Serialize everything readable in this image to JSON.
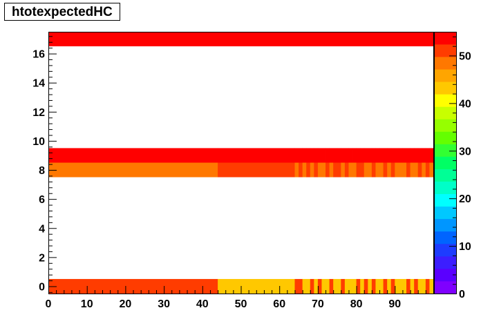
{
  "chart_data": {
    "type": "heatmap",
    "title": "htotexpectedHC",
    "xlabel": "",
    "ylabel": "",
    "xlim": [
      0,
      100
    ],
    "ylim": [
      -0.5,
      17.5
    ],
    "x_ticks": [
      0,
      10,
      20,
      30,
      40,
      50,
      60,
      70,
      80,
      90
    ],
    "y_ticks": [
      0,
      2,
      4,
      6,
      8,
      10,
      12,
      14,
      16
    ],
    "zlim": [
      0,
      55
    ],
    "z_ticks": [
      0,
      10,
      20,
      30,
      40,
      50
    ],
    "grid": false,
    "palette": [
      "#7f00ff",
      "#5a00ff",
      "#3c1eff",
      "#1e3cff",
      "#0064ff",
      "#0096ff",
      "#00c8ff",
      "#00ffff",
      "#00ffc8",
      "#00ff96",
      "#00ff64",
      "#32ff32",
      "#64ff00",
      "#96ff00",
      "#c8ff00",
      "#ffff00",
      "#ffc800",
      "#ffa500",
      "#ff7800",
      "#ff3c00",
      "#ff0000"
    ],
    "rows": [
      {
        "y": 0,
        "segments": [
          {
            "x": [
              0,
              44
            ],
            "z": 51
          },
          {
            "x": [
              44,
              64
            ],
            "z": 43
          },
          {
            "x": [
              64,
              66
            ],
            "z": 51
          },
          {
            "x": [
              66,
              68
            ],
            "z": 43
          },
          {
            "x": [
              68,
              69
            ],
            "z": 51
          },
          {
            "x": [
              69,
              70
            ],
            "z": 43
          },
          {
            "x": [
              70,
              71
            ],
            "z": 51
          },
          {
            "x": [
              71,
              73
            ],
            "z": 43
          },
          {
            "x": [
              73,
              74
            ],
            "z": 51
          },
          {
            "x": [
              74,
              76
            ],
            "z": 43
          },
          {
            "x": [
              76,
              77
            ],
            "z": 51
          },
          {
            "x": [
              77,
              80
            ],
            "z": 43
          },
          {
            "x": [
              80,
              81
            ],
            "z": 51
          },
          {
            "x": [
              81,
              82
            ],
            "z": 43
          },
          {
            "x": [
              82,
              83
            ],
            "z": 51
          },
          {
            "x": [
              83,
              84
            ],
            "z": 43
          },
          {
            "x": [
              84,
              85
            ],
            "z": 51
          },
          {
            "x": [
              85,
              87
            ],
            "z": 43
          },
          {
            "x": [
              87,
              88
            ],
            "z": 51
          },
          {
            "x": [
              88,
              89
            ],
            "z": 43
          },
          {
            "x": [
              89,
              90
            ],
            "z": 51
          },
          {
            "x": [
              90,
              93
            ],
            "z": 43
          },
          {
            "x": [
              93,
              94
            ],
            "z": 51
          },
          {
            "x": [
              94,
              95
            ],
            "z": 43
          },
          {
            "x": [
              95,
              96
            ],
            "z": 51
          },
          {
            "x": [
              96,
              98
            ],
            "z": 43
          },
          {
            "x": [
              98,
              99
            ],
            "z": 51
          },
          {
            "x": [
              99,
              100
            ],
            "z": 43
          }
        ]
      },
      {
        "y": 8,
        "segments": [
          {
            "x": [
              0,
              44
            ],
            "z": 49
          },
          {
            "x": [
              44,
              64
            ],
            "z": 51
          },
          {
            "x": [
              64,
              65
            ],
            "z": 49
          },
          {
            "x": [
              65,
              66
            ],
            "z": 51
          },
          {
            "x": [
              66,
              67
            ],
            "z": 49
          },
          {
            "x": [
              67,
              68
            ],
            "z": 51
          },
          {
            "x": [
              68,
              69
            ],
            "z": 49
          },
          {
            "x": [
              69,
              70
            ],
            "z": 51
          },
          {
            "x": [
              70,
              72
            ],
            "z": 49
          },
          {
            "x": [
              72,
              73
            ],
            "z": 51
          },
          {
            "x": [
              73,
              74
            ],
            "z": 49
          },
          {
            "x": [
              74,
              76
            ],
            "z": 51
          },
          {
            "x": [
              76,
              77
            ],
            "z": 49
          },
          {
            "x": [
              77,
              78
            ],
            "z": 51
          },
          {
            "x": [
              78,
              80
            ],
            "z": 49
          },
          {
            "x": [
              80,
              82
            ],
            "z": 51
          },
          {
            "x": [
              82,
              84
            ],
            "z": 49
          },
          {
            "x": [
              84,
              85
            ],
            "z": 51
          },
          {
            "x": [
              85,
              87
            ],
            "z": 49
          },
          {
            "x": [
              87,
              88
            ],
            "z": 51
          },
          {
            "x": [
              88,
              89
            ],
            "z": 49
          },
          {
            "x": [
              89,
              90
            ],
            "z": 51
          },
          {
            "x": [
              90,
              93
            ],
            "z": 49
          },
          {
            "x": [
              93,
              94
            ],
            "z": 51
          },
          {
            "x": [
              94,
              96
            ],
            "z": 49
          },
          {
            "x": [
              96,
              97
            ],
            "z": 51
          },
          {
            "x": [
              97,
              98
            ],
            "z": 49
          },
          {
            "x": [
              98,
              99
            ],
            "z": 51
          },
          {
            "x": [
              99,
              100
            ],
            "z": 49
          }
        ]
      },
      {
        "y": 9,
        "segments": [
          {
            "x": [
              0,
              44
            ],
            "z": 54
          },
          {
            "x": [
              44,
              64
            ],
            "z": 53
          },
          {
            "x": [
              64,
              66
            ],
            "z": 54
          },
          {
            "x": [
              66,
              67
            ],
            "z": 53
          },
          {
            "x": [
              67,
              68
            ],
            "z": 54
          },
          {
            "x": [
              68,
              69
            ],
            "z": 53
          },
          {
            "x": [
              69,
              70
            ],
            "z": 54
          },
          {
            "x": [
              70,
              72
            ],
            "z": 53
          },
          {
            "x": [
              72,
              73
            ],
            "z": 54
          },
          {
            "x": [
              73,
              75
            ],
            "z": 53
          },
          {
            "x": [
              75,
              76
            ],
            "z": 54
          },
          {
            "x": [
              76,
              78
            ],
            "z": 53
          },
          {
            "x": [
              78,
              79
            ],
            "z": 54
          },
          {
            "x": [
              79,
              80
            ],
            "z": 53
          },
          {
            "x": [
              80,
              81
            ],
            "z": 54
          },
          {
            "x": [
              81,
              82
            ],
            "z": 53
          },
          {
            "x": [
              82,
              84
            ],
            "z": 54
          },
          {
            "x": [
              84,
              85
            ],
            "z": 53
          },
          {
            "x": [
              85,
              86
            ],
            "z": 54
          },
          {
            "x": [
              86,
              88
            ],
            "z": 53
          },
          {
            "x": [
              88,
              89
            ],
            "z": 54
          },
          {
            "x": [
              89,
              91
            ],
            "z": 53
          },
          {
            "x": [
              91,
              92
            ],
            "z": 54
          },
          {
            "x": [
              92,
              94
            ],
            "z": 53
          },
          {
            "x": [
              94,
              95
            ],
            "z": 54
          },
          {
            "x": [
              95,
              96
            ],
            "z": 53
          },
          {
            "x": [
              96,
              97
            ],
            "z": 54
          },
          {
            "x": [
              97,
              98
            ],
            "z": 53
          },
          {
            "x": [
              98,
              99
            ],
            "z": 54
          },
          {
            "x": [
              99,
              100
            ],
            "z": 53
          }
        ]
      },
      {
        "y": 17,
        "segments": [
          {
            "x": [
              0,
              100
            ],
            "z": 54.5
          }
        ]
      }
    ]
  }
}
